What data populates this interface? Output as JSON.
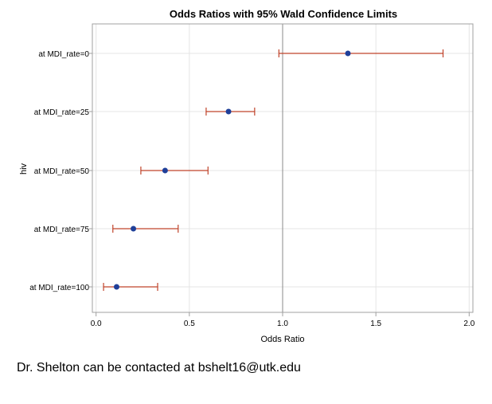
{
  "chart_data": {
    "type": "scatter",
    "title": "Odds Ratios with 95% Wald Confidence Limits",
    "xlabel": "Odds Ratio",
    "ylabel": "hiv",
    "xlim": [
      -0.02,
      2.02
    ],
    "xticks": [
      "0.0",
      "0.5",
      "1.0",
      "1.5",
      "2.0"
    ],
    "reference_line": 1.0,
    "grid": true,
    "categories": [
      "at MDI_rate=0",
      "at MDI_rate=25",
      "at MDI_rate=50",
      "at MDI_rate=75",
      "at MDI_rate=100"
    ],
    "estimates": [
      1.35,
      0.71,
      0.37,
      0.2,
      0.11
    ],
    "lower": [
      0.98,
      0.59,
      0.24,
      0.09,
      0.04
    ],
    "upper": [
      1.86,
      0.85,
      0.6,
      0.44,
      0.33
    ],
    "colors": {
      "point": "#1f3f99",
      "ci": "#c0432a",
      "ref_line": "#8a8a8a",
      "grid": "#e4e4e4",
      "frame": "#a0a0a0"
    }
  },
  "footer": {
    "note": "Dr. Shelton can be contacted at bshelt16@utk.edu"
  }
}
